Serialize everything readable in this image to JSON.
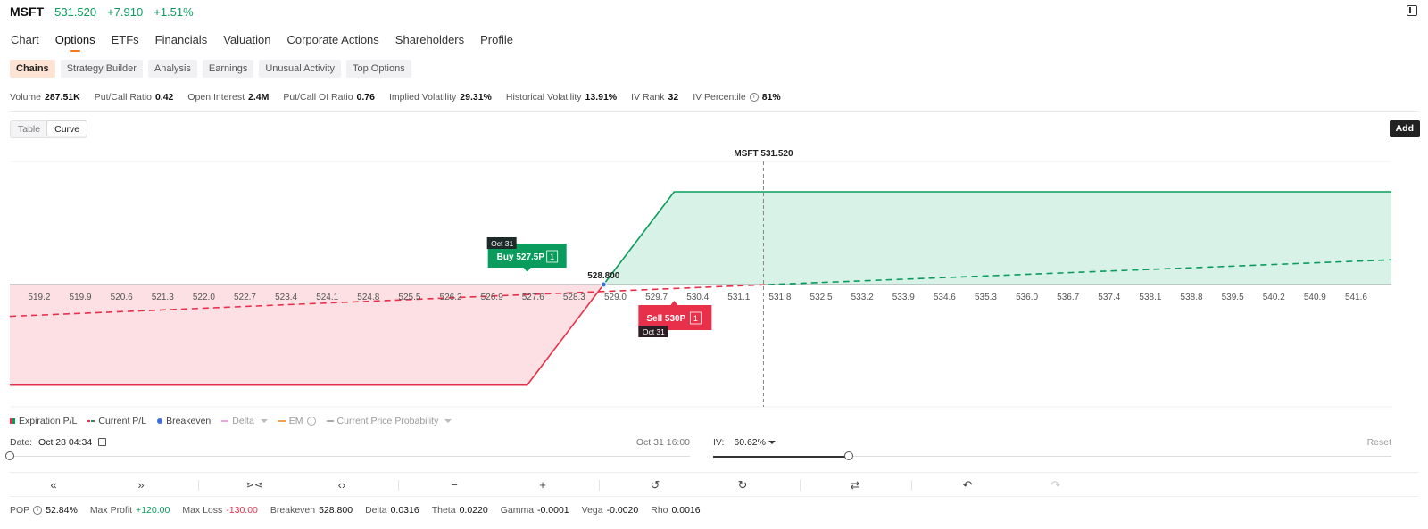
{
  "quote": {
    "symbol": "MSFT",
    "price": "531.520",
    "change": "+7.910",
    "change_pct": "+1.51%"
  },
  "tabs": [
    {
      "label": "Chart",
      "active": false
    },
    {
      "label": "Options",
      "active": true
    },
    {
      "label": "ETFs",
      "active": false
    },
    {
      "label": "Financials",
      "active": false
    },
    {
      "label": "Valuation",
      "active": false
    },
    {
      "label": "Corporate Actions",
      "active": false
    },
    {
      "label": "Shareholders",
      "active": false
    },
    {
      "label": "Profile",
      "active": false
    }
  ],
  "subtabs": [
    {
      "label": "Chains",
      "active": true
    },
    {
      "label": "Strategy Builder",
      "active": false
    },
    {
      "label": "Analysis",
      "active": false
    },
    {
      "label": "Earnings",
      "active": false
    },
    {
      "label": "Unusual Activity",
      "active": false
    },
    {
      "label": "Top Options",
      "active": false
    }
  ],
  "stats": [
    {
      "label": "Volume",
      "value": "287.51K"
    },
    {
      "label": "Put/Call Ratio",
      "value": "0.42"
    },
    {
      "label": "Open Interest",
      "value": "2.4M"
    },
    {
      "label": "Put/Call OI Ratio",
      "value": "0.76"
    },
    {
      "label": "Implied Volatility",
      "value": "29.31%"
    },
    {
      "label": "Historical Volatility",
      "value": "13.91%"
    },
    {
      "label": "IV Rank",
      "value": "32"
    },
    {
      "label": "IV Percentile",
      "value": "81%",
      "icon": "info-icon"
    }
  ],
  "view_toggle": {
    "table": "Table",
    "curve": "Curve",
    "active": "Curve"
  },
  "add_label": "Add",
  "chart": {
    "current_price_label": "MSFT 531.520",
    "breakeven_label": "528.800",
    "x_ticks": [
      "519.2",
      "519.9",
      "520.6",
      "521.3",
      "522.0",
      "522.7",
      "523.4",
      "524.1",
      "524.8",
      "525.5",
      "526.2",
      "526.9",
      "527.6",
      "528.3",
      "529.0",
      "529.7",
      "530.4",
      "531.1",
      "531.8",
      "532.5",
      "533.2",
      "533.9",
      "534.6",
      "535.3",
      "536.0",
      "536.7",
      "537.4",
      "538.1",
      "538.8",
      "539.5",
      "540.2",
      "540.9",
      "541.6"
    ],
    "buy_leg": {
      "label": "Buy 527.5P",
      "qty": "1",
      "expiry": "Oct 31"
    },
    "sell_leg": {
      "label": "Sell 530P",
      "qty": "1",
      "expiry": "Oct 31"
    },
    "colors": {
      "profit": "#0a9c5c",
      "loss": "#e8304a",
      "profit_fill": "#d9f2e8",
      "loss_fill": "#fde0e3",
      "breakeven": "#3d6fe0"
    }
  },
  "chart_data": {
    "type": "line",
    "xlabel": "",
    "ylabel": "",
    "xlim": [
      518.7,
      542.2
    ],
    "series": [
      {
        "name": "Expiration P/L",
        "x": [
          518.7,
          527.5,
          530.0,
          542.2
        ],
        "y": [
          -130,
          -130,
          120,
          120
        ]
      },
      {
        "name": "Current P/L",
        "x": [
          518.7,
          531.6,
          542.2
        ],
        "y": [
          -41,
          0,
          32
        ]
      }
    ],
    "breakeven": 528.8,
    "current_price": 531.52
  },
  "legend": [
    {
      "label": "Expiration P/L",
      "muted": false
    },
    {
      "label": "Current P/L",
      "muted": false
    },
    {
      "label": "Breakeven",
      "muted": false
    },
    {
      "label": "Delta",
      "muted": true
    },
    {
      "label": "EM",
      "muted": true
    },
    {
      "label": "Current Price Probability",
      "muted": true
    }
  ],
  "date_slider": {
    "label": "Date:",
    "value": "Oct 28 04:34",
    "end": "Oct 31 16:00",
    "position": 0
  },
  "iv_slider": {
    "label": "IV:",
    "value": "60.62%",
    "reset": "Reset",
    "position": 0.2
  },
  "controls": [
    "«",
    "»",
    "⋗⋖",
    "‹›",
    "−",
    "+",
    "↺",
    "↻",
    "⇄",
    "↶",
    "↷"
  ],
  "footer": {
    "pop": {
      "label": "POP",
      "value": "52.84%"
    },
    "max_profit": {
      "label": "Max Profit",
      "value": "+120.00"
    },
    "max_loss": {
      "label": "Max Loss",
      "value": "-130.00"
    },
    "breakeven": {
      "label": "Breakeven",
      "value": "528.800"
    },
    "delta": {
      "label": "Delta",
      "value": "0.0316"
    },
    "theta": {
      "label": "Theta",
      "value": "0.0220"
    },
    "gamma": {
      "label": "Gamma",
      "value": "-0.0001"
    },
    "vega": {
      "label": "Vega",
      "value": "-0.0020"
    },
    "rho": {
      "label": "Rho",
      "value": "0.0016"
    }
  }
}
